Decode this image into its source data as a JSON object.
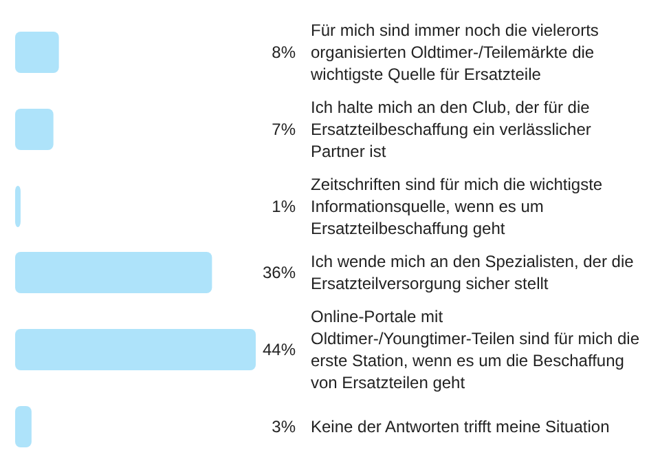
{
  "chart_data": {
    "type": "bar",
    "orientation": "horizontal",
    "color": "#aee3fa",
    "categories": [
      "Für mich sind immer noch die vielerorts organisierten Oldtimer-/Teilemärkte die wichtigste Quelle für Ersatzteile",
      "Ich halte mich an den Club, der für die Ersatzteilbeschaffung ein verlässlicher Partner ist",
      "Zeitschriften sind für mich die wichtigste Informationsquelle, wenn es um Ersatzteilbeschaffung geht",
      "Ich wende mich an den Spezialisten, der die Ersatzteilversorgung sicher stellt",
      "Online-Portale mit Oldtimer-/Youngtimer-Teilen sind für mich die erste Station, wenn es um die Beschaffung von Ersatzteilen geht",
      "Keine der Antworten trifft meine Situation"
    ],
    "values": [
      8,
      7,
      1,
      36,
      44,
      3
    ],
    "value_labels": [
      "8%",
      "7%",
      "1%",
      "36%",
      "44%",
      "3%"
    ]
  }
}
